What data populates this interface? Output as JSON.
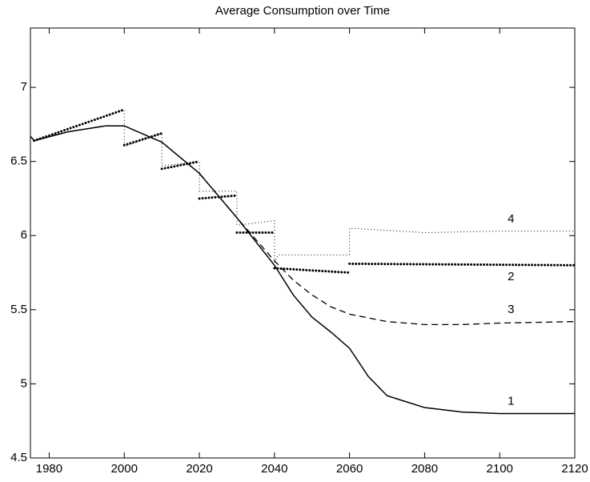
{
  "chart_data": {
    "type": "line",
    "title": "Average Consumption over Time",
    "xlim": [
      1975,
      2120
    ],
    "xticks": [
      1980,
      2000,
      2020,
      2040,
      2060,
      2080,
      2100,
      2120
    ],
    "ylim": [
      4.5,
      7.4
    ],
    "yticks": [
      4.5,
      5,
      5.5,
      6,
      6.5,
      7
    ],
    "series": [
      {
        "name": "1",
        "color": "#000000",
        "style": "solid",
        "x": [
          1975,
          1976,
          1985,
          1995,
          2000,
          2010,
          2020,
          2030,
          2040,
          2045,
          2050,
          2055,
          2060,
          2065,
          2070,
          2080,
          2090,
          2100,
          2120
        ],
        "values": [
          6.67,
          6.64,
          6.7,
          6.74,
          6.74,
          6.63,
          6.42,
          6.12,
          5.8,
          5.6,
          5.45,
          5.35,
          5.24,
          5.05,
          4.92,
          4.84,
          4.81,
          4.8,
          4.8
        ]
      },
      {
        "name": "2",
        "color": "#000000",
        "style": "thick-dotted",
        "x": [
          1976,
          2000,
          2000,
          2000,
          2010,
          2010,
          2010,
          2020,
          2020,
          2020,
          2030,
          2030,
          2030,
          2040,
          2040,
          2040,
          2060,
          2060,
          2060,
          2120
        ],
        "values": [
          6.64,
          6.85,
          null,
          6.61,
          6.69,
          null,
          6.45,
          6.5,
          null,
          6.25,
          6.27,
          null,
          6.02,
          6.02,
          null,
          5.78,
          5.75,
          null,
          5.81,
          5.8
        ]
      },
      {
        "name": "3",
        "color": "#000000",
        "style": "dashed",
        "x": [
          2020,
          2030,
          2040,
          2045,
          2050,
          2055,
          2060,
          2070,
          2080,
          2090,
          2100,
          2120
        ],
        "values": [
          6.42,
          6.12,
          5.83,
          5.7,
          5.6,
          5.52,
          5.47,
          5.42,
          5.4,
          5.4,
          5.41,
          5.42
        ]
      },
      {
        "name": "4",
        "color": "#000000",
        "style": "dotted",
        "x": [
          1976,
          2000,
          2000,
          2010,
          2010,
          2020,
          2020,
          2030,
          2030,
          2040,
          2040,
          2041,
          2060,
          2060,
          2080,
          2100,
          2120
        ],
        "values": [
          6.64,
          6.85,
          6.6,
          6.69,
          6.47,
          6.5,
          6.3,
          6.3,
          6.07,
          6.1,
          5.82,
          5.87,
          5.87,
          6.05,
          6.02,
          6.03,
          6.03
        ]
      }
    ]
  }
}
